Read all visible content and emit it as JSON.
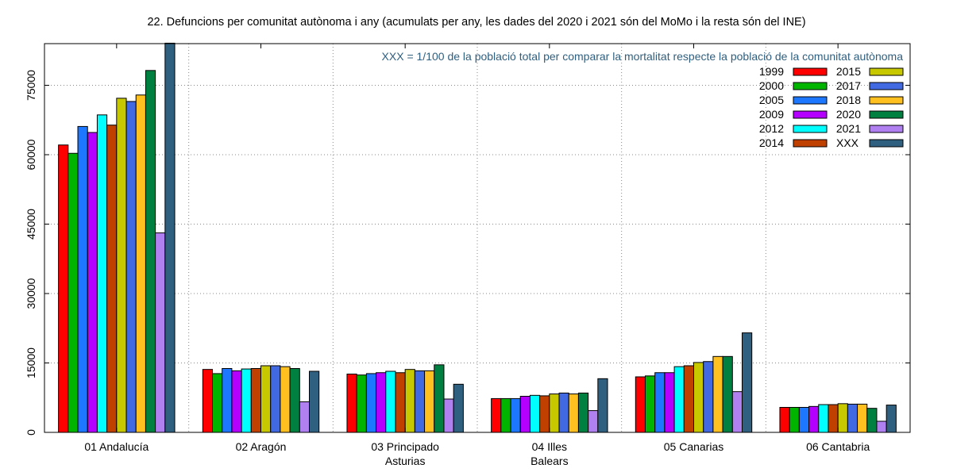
{
  "chart_data": {
    "type": "bar",
    "title": "22. Defuncions per comunitat autònoma i any (acumulats per any, les dades del 2020 i 2021 són del MoMo i la resta són del INE)",
    "annotation": "XXX = 1/100 de la població total per comparar la mortalitat respecte la població de la comunitat autònoma",
    "annotation_color": "#2f5f7f",
    "xlabel": "",
    "ylabel": "",
    "ylim": [
      0,
      84000
    ],
    "yticks": [
      0,
      15000,
      30000,
      45000,
      60000,
      75000
    ],
    "grid": true,
    "legend_position": "top-right",
    "categories": [
      [
        "01 Andalucía"
      ],
      [
        "02 Aragón"
      ],
      [
        "03 Principado",
        "Asturias"
      ],
      [
        "04 Illes",
        "Balears"
      ],
      [
        "05 Canarias"
      ],
      [
        "06 Cantabria"
      ]
    ],
    "series": [
      {
        "name": "1999",
        "color": "#ff0000",
        "values": [
          62100,
          13600,
          12600,
          7300,
          12000,
          5400
        ]
      },
      {
        "name": "2000",
        "color": "#00b400",
        "values": [
          60300,
          12700,
          12400,
          7300,
          12200,
          5400
        ]
      },
      {
        "name": "2005",
        "color": "#1e78ff",
        "values": [
          66100,
          13800,
          12700,
          7300,
          12900,
          5400
        ]
      },
      {
        "name": "2009",
        "color": "#b400ff",
        "values": [
          64800,
          13300,
          12900,
          7800,
          12900,
          5600
        ]
      },
      {
        "name": "2012",
        "color": "#00ffff",
        "values": [
          68600,
          13700,
          13200,
          8000,
          14200,
          6000
        ]
      },
      {
        "name": "2014",
        "color": "#c04000",
        "values": [
          66400,
          13800,
          12900,
          7900,
          14400,
          6000
        ]
      },
      {
        "name": "2015",
        "color": "#c8c800",
        "values": [
          72200,
          14400,
          13600,
          8300,
          15100,
          6200
        ]
      },
      {
        "name": "2017",
        "color": "#4169e1",
        "values": [
          71500,
          14400,
          13300,
          8500,
          15300,
          6100
        ]
      },
      {
        "name": "2018",
        "color": "#ffc020",
        "values": [
          72900,
          14200,
          13300,
          8300,
          16400,
          6100
        ]
      },
      {
        "name": "2020",
        "color": "#008040",
        "values": [
          78200,
          13800,
          14600,
          8500,
          16400,
          5200
        ]
      },
      {
        "name": "2021",
        "color": "#b080f0",
        "values": [
          43100,
          6600,
          7200,
          4700,
          8800,
          2400
        ]
      },
      {
        "name": "XXX",
        "color": "#306080",
        "values": [
          84100,
          13200,
          10400,
          11600,
          21500,
          5900
        ]
      }
    ]
  }
}
